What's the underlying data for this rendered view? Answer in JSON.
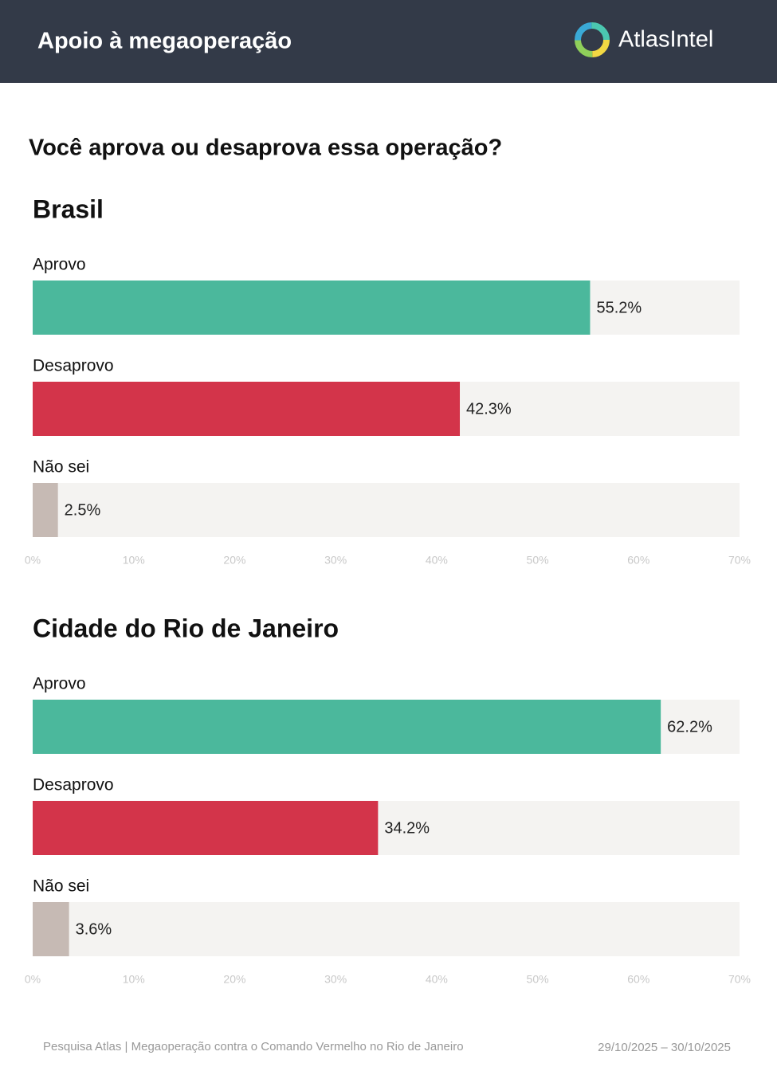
{
  "header": {
    "title": "Apoio à megaoperação",
    "brand": "AtlasIntel"
  },
  "question": "Você aprova ou desaprova essa operação?",
  "chart_data": [
    {
      "type": "barh",
      "title": "Brasil",
      "categories": [
        "Aprovo",
        "Desaprovo",
        "Não sei"
      ],
      "values": [
        55.2,
        42.3,
        2.5
      ],
      "value_labels": [
        "55.2%",
        "42.3%",
        "2.5%"
      ],
      "colors": [
        "#4bb89c",
        "#d3344a",
        "#c6bab4"
      ],
      "xlim": [
        0,
        70
      ],
      "xticks": [
        {
          "value": 0,
          "label": "0%"
        },
        {
          "value": 10,
          "label": "10%"
        },
        {
          "value": 20,
          "label": "20%"
        },
        {
          "value": 30,
          "label": "30%"
        },
        {
          "value": 40,
          "label": "40%"
        },
        {
          "value": 50,
          "label": "50%"
        },
        {
          "value": 60,
          "label": "60%"
        },
        {
          "value": 70,
          "label": "70%"
        }
      ]
    },
    {
      "type": "barh",
      "title": "Cidade do Rio de Janeiro",
      "categories": [
        "Aprovo",
        "Desaprovo",
        "Não sei"
      ],
      "values": [
        62.2,
        34.2,
        3.6
      ],
      "value_labels": [
        "62.2%",
        "34.2%",
        "3.6%"
      ],
      "colors": [
        "#4bb89c",
        "#d3344a",
        "#c6bab4"
      ],
      "xlim": [
        0,
        70
      ],
      "xticks": [
        {
          "value": 0,
          "label": "0%"
        },
        {
          "value": 10,
          "label": "10%"
        },
        {
          "value": 20,
          "label": "20%"
        },
        {
          "value": 30,
          "label": "30%"
        },
        {
          "value": 40,
          "label": "40%"
        },
        {
          "value": 50,
          "label": "50%"
        },
        {
          "value": 60,
          "label": "60%"
        },
        {
          "value": 70,
          "label": "70%"
        }
      ]
    }
  ],
  "footer": {
    "source": "Pesquisa Atlas | Megaoperação contra o Comando Vermelho no Rio de Janeiro",
    "dates": "29/10/2025 – 30/10/2025"
  }
}
